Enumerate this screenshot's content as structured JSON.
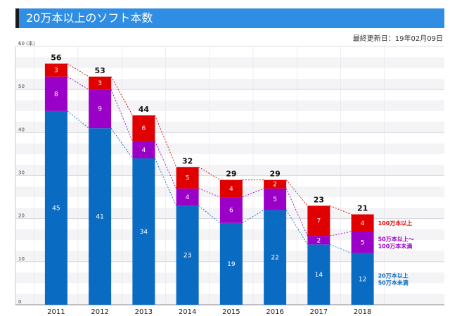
{
  "header": {
    "title": "20万本以上のソフト本数"
  },
  "updated": "最終更新日：19年02月09日",
  "colors": {
    "red": "#e00000",
    "purple": "#9b00c8",
    "blue": "#0a6bc3",
    "header": "#2f8de4"
  },
  "legend": {
    "red": [
      "100万本以上"
    ],
    "purple": [
      "50万本以上～",
      "100万本未満"
    ],
    "blue": [
      "20万本以上",
      "50万本未満"
    ]
  },
  "chart_data": {
    "type": "bar",
    "stacked": true,
    "title": "20万本以上のソフト本数",
    "ylabel": "(本)",
    "ylim": [
      0,
      60
    ],
    "yticks": [
      0,
      10,
      20,
      30,
      40,
      50,
      60
    ],
    "ytick_labels": [
      "0",
      "10",
      "20",
      "30",
      "40",
      "50",
      "60 (本)"
    ],
    "categories": [
      "2011",
      "2012",
      "2013",
      "2014",
      "2015",
      "2016",
      "2017",
      "2018"
    ],
    "series": [
      {
        "name": "20万本以上 50万本未満",
        "color": "#0a6bc3",
        "values": [
          45,
          41,
          34,
          23,
          19,
          22,
          14,
          12
        ]
      },
      {
        "name": "50万本以上～ 100万本未満",
        "color": "#9b00c8",
        "values": [
          8,
          9,
          4,
          4,
          6,
          5,
          2,
          5
        ]
      },
      {
        "name": "100万本以上",
        "color": "#e00000",
        "values": [
          3,
          3,
          6,
          5,
          4,
          2,
          7,
          4
        ]
      }
    ],
    "totals": [
      56,
      53,
      44,
      32,
      29,
      29,
      23,
      21
    ]
  }
}
